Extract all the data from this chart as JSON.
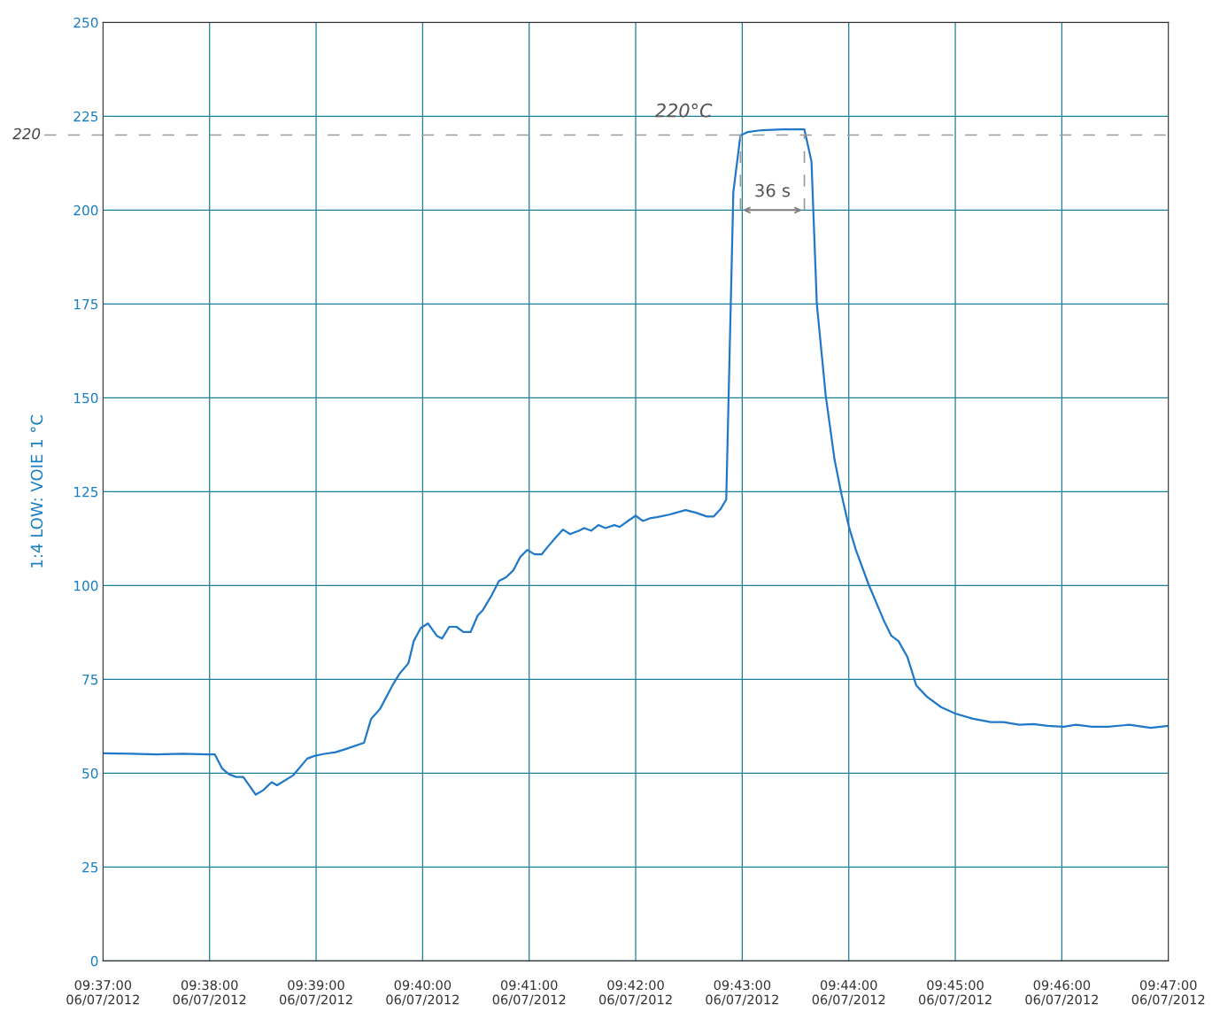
{
  "chart_data": {
    "type": "line",
    "ylabel": "1:4 LOW: VOIE 1 °C",
    "xlim": [
      "2012-07-06T09:37",
      "2012-07-06T09:47"
    ],
    "ylim": [
      0,
      250
    ],
    "xticks": [
      {
        "value": "2012-07-06T09:37",
        "label": "09:37:00\n06/07/2012"
      },
      {
        "value": "2012-07-06T09:38",
        "label": "09:38:00\n06/07/2012"
      },
      {
        "value": "2012-07-06T09:39",
        "label": "09:39:00\n06/07/2012"
      },
      {
        "value": "2012-07-06T09:40",
        "label": "09:40:00\n06/07/2012"
      },
      {
        "value": "2012-07-06T09:41",
        "label": "09:41:00\n06/07/2012"
      },
      {
        "value": "2012-07-06T09:42",
        "label": "09:42:00\n06/07/2012"
      },
      {
        "value": "2012-07-06T09:43",
        "label": "09:43:00\n06/07/2012"
      },
      {
        "value": "2012-07-06T09:44",
        "label": "09:44:00\n06/07/2012"
      },
      {
        "value": "2012-07-06T09:45",
        "label": "09:45:00\n06/07/2012"
      },
      {
        "value": "2012-07-06T09:46",
        "label": "09:46:00\n06/07/2012"
      },
      {
        "value": "2012-07-06T09:47",
        "label": "09:47:00\n06/07/2012"
      }
    ],
    "yticks": [
      0,
      25,
      50,
      75,
      100,
      125,
      150,
      175,
      200,
      225,
      250
    ],
    "grid": true,
    "marker": "none",
    "line_style": "solid",
    "series": [
      {
        "color": "#1f78c8",
        "x": [
          "2012-07-06T09:37:00",
          "2012-07-06T09:37:16",
          "2012-07-06T09:37:30",
          "2012-07-06T09:37:45",
          "2012-07-06T09:37:59",
          "2012-07-06T09:38:03",
          "2012-07-06T09:38:07",
          "2012-07-06T09:38:11",
          "2012-07-06T09:38:15",
          "2012-07-06T09:38:19",
          "2012-07-06T09:38:26",
          "2012-07-06T09:38:30",
          "2012-07-06T09:38:35",
          "2012-07-06T09:38:38",
          "2012-07-06T09:38:47",
          "2012-07-06T09:38:55",
          "2012-07-06T09:38:59",
          "2012-07-06T09:39:04",
          "2012-07-06T09:39:11",
          "2012-07-06T09:39:17",
          "2012-07-06T09:39:27",
          "2012-07-06T09:39:31",
          "2012-07-06T09:39:36",
          "2012-07-06T09:39:43",
          "2012-07-06T09:39:47",
          "2012-07-06T09:39:52",
          "2012-07-06T09:39:55",
          "2012-07-06T09:39:59",
          "2012-07-06T09:40:03",
          "2012-07-06T09:40:08",
          "2012-07-06T09:40:11",
          "2012-07-06T09:40:15",
          "2012-07-06T09:40:19",
          "2012-07-06T09:40:23",
          "2012-07-06T09:40:27",
          "2012-07-06T09:40:31",
          "2012-07-06T09:40:34",
          "2012-07-06T09:40:39",
          "2012-07-06T09:40:43",
          "2012-07-06T09:40:47",
          "2012-07-06T09:40:51",
          "2012-07-06T09:40:55",
          "2012-07-06T09:40:59",
          "2012-07-06T09:41:03",
          "2012-07-06T09:41:07",
          "2012-07-06T09:41:11",
          "2012-07-06T09:41:15",
          "2012-07-06T09:41:19",
          "2012-07-06T09:41:23",
          "2012-07-06T09:41:28",
          "2012-07-06T09:41:31",
          "2012-07-06T09:41:35",
          "2012-07-06T09:41:39",
          "2012-07-06T09:41:43",
          "2012-07-06T09:41:48",
          "2012-07-06T09:41:51",
          "2012-07-06T09:41:55",
          "2012-07-06T09:42:00",
          "2012-07-06T09:42:04",
          "2012-07-06T09:42:08",
          "2012-07-06T09:42:12",
          "2012-07-06T09:42:19",
          "2012-07-06T09:42:28",
          "2012-07-06T09:42:34",
          "2012-07-06T09:42:40",
          "2012-07-06T09:42:44",
          "2012-07-06T09:42:48",
          "2012-07-06T09:42:51",
          "2012-07-06T09:42:55",
          "2012-07-06T09:42:59",
          "2012-07-06T09:43:03",
          "2012-07-06T09:43:11",
          "2012-07-06T09:43:23",
          "2012-07-06T09:43:35",
          "2012-07-06T09:43:39",
          "2012-07-06T09:43:42",
          "2012-07-06T09:43:47",
          "2012-07-06T09:43:52",
          "2012-07-06T09:43:56",
          "2012-07-06T09:44:00",
          "2012-07-06T09:44:04",
          "2012-07-06T09:44:11",
          "2012-07-06T09:44:20",
          "2012-07-06T09:44:24",
          "2012-07-06T09:44:28",
          "2012-07-06T09:44:33",
          "2012-07-06T09:44:38",
          "2012-07-06T09:44:44",
          "2012-07-06T09:44:52",
          "2012-07-06T09:45:00",
          "2012-07-06T09:45:10",
          "2012-07-06T09:45:20",
          "2012-07-06T09:45:27",
          "2012-07-06T09:45:36",
          "2012-07-06T09:45:44",
          "2012-07-06T09:45:52",
          "2012-07-06T09:46:01",
          "2012-07-06T09:46:08",
          "2012-07-06T09:46:17",
          "2012-07-06T09:46:26",
          "2012-07-06T09:46:38",
          "2012-07-06T09:46:50",
          "2012-07-06T09:47:00"
        ],
        "values": [
          55.3,
          55.2,
          55.0,
          55.2,
          55.0,
          55.0,
          51.3,
          49.7,
          49.0,
          49.0,
          44.3,
          45.4,
          47.6,
          46.8,
          49.4,
          53.9,
          54.6,
          55.1,
          55.6,
          56.5,
          58.1,
          64.5,
          67.1,
          73.4,
          76.5,
          79.3,
          85.2,
          88.7,
          89.9,
          86.6,
          85.9,
          89.0,
          89.0,
          87.6,
          87.6,
          92.0,
          93.5,
          97.5,
          101.2,
          102.2,
          104.0,
          107.6,
          109.5,
          108.3,
          108.3,
          110.6,
          112.8,
          114.9,
          113.7,
          114.6,
          115.3,
          114.6,
          116.1,
          115.3,
          116.1,
          115.6,
          117.0,
          118.6,
          117.2,
          117.9,
          118.2,
          118.9,
          120.1,
          119.4,
          118.4,
          118.4,
          120.5,
          122.9,
          204.8,
          219.9,
          220.8,
          221.3,
          221.5,
          221.5,
          213.0,
          175.1,
          150.7,
          133.5,
          124.1,
          115.8,
          109.5,
          100.5,
          90.4,
          86.6,
          85.2,
          81.0,
          73.4,
          70.4,
          67.6,
          65.9,
          64.5,
          63.6,
          63.6,
          62.9,
          63.1,
          62.6,
          62.4,
          62.9,
          62.4,
          62.4,
          62.9,
          62.1,
          62.6
        ]
      }
    ],
    "ref_lines": [
      {
        "axis": "y",
        "value": 220,
        "label": "220",
        "color": "#9a9a9a",
        "line_style": "dashed"
      },
      {
        "axis": "x",
        "value": "2012-07-06T09:42:59",
        "color": "#9a9a9a",
        "line_style": "dashed"
      },
      {
        "axis": "x",
        "value": "2012-07-06T09:43:35",
        "color": "#9a9a9a",
        "line_style": "dashed"
      }
    ],
    "annotations": [
      "220°C",
      "36 s"
    ]
  }
}
